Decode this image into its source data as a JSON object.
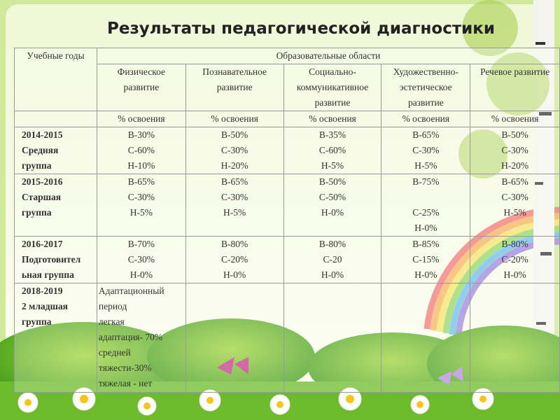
{
  "title": "Результаты педагогической диагностики",
  "table": {
    "header": {
      "years": "Учебные годы",
      "areas_title": "Образовательные области",
      "areas": [
        "Физическое развитие",
        "Познавательное развитие",
        "Социально-коммуникативное развитие",
        "Художественно-эстетическое развитие",
        "Речевое развитие"
      ],
      "units": [
        "% освоения",
        "% освоения",
        "% освоения",
        "% освоения",
        "% освоения"
      ]
    },
    "rows": [
      {
        "year": [
          "2014-2015",
          "Средняя",
          "группа"
        ],
        "cells": [
          [
            "В-30%",
            "С-60%",
            "Н-10%"
          ],
          [
            "В-50%",
            "С-30%",
            "Н-20%"
          ],
          [
            "В-35%",
            "С-60%",
            "Н-5%"
          ],
          [
            "В-65%",
            "С-30%",
            "Н-5%"
          ],
          [
            "В-50%",
            "С-30%",
            "Н-20%"
          ]
        ]
      },
      {
        "year": [
          "2015-2016",
          "Старшая",
          "группа"
        ],
        "cells": [
          [
            "В-65%",
            "С-30%",
            "Н-5%"
          ],
          [
            "В-65%",
            "С-30%",
            "Н-5%"
          ],
          [
            "В-50%",
            "С-50%",
            "Н-0%"
          ],
          [
            "В-75%",
            "С-25%",
            "Н-0%"
          ],
          [
            "В-65%",
            "С-30%",
            "Н-5%"
          ]
        ]
      },
      {
        "year": [
          "2016-2017",
          "Подготовител",
          "ьная группа"
        ],
        "cells": [
          [
            "В-70%",
            "С-30%",
            "Н-0%"
          ],
          [
            "В-80%",
            "С-20%",
            "Н-0%"
          ],
          [
            "В-80%",
            "С-20",
            "Н-0%"
          ],
          [
            "В-85%",
            "С-15%",
            "Н-0%"
          ],
          [
            "В-80%",
            "С-20%",
            "Н-0%"
          ]
        ]
      },
      {
        "year": [
          "2018-2019",
          "2 младшая",
          "группа"
        ],
        "cells": [
          [
            "Адаптационный",
            "период",
            "легкая",
            "адаптация- 70%",
            "средней",
            "тяжести-30%",
            "тяжелая - нет"
          ]
        ]
      }
    ]
  }
}
